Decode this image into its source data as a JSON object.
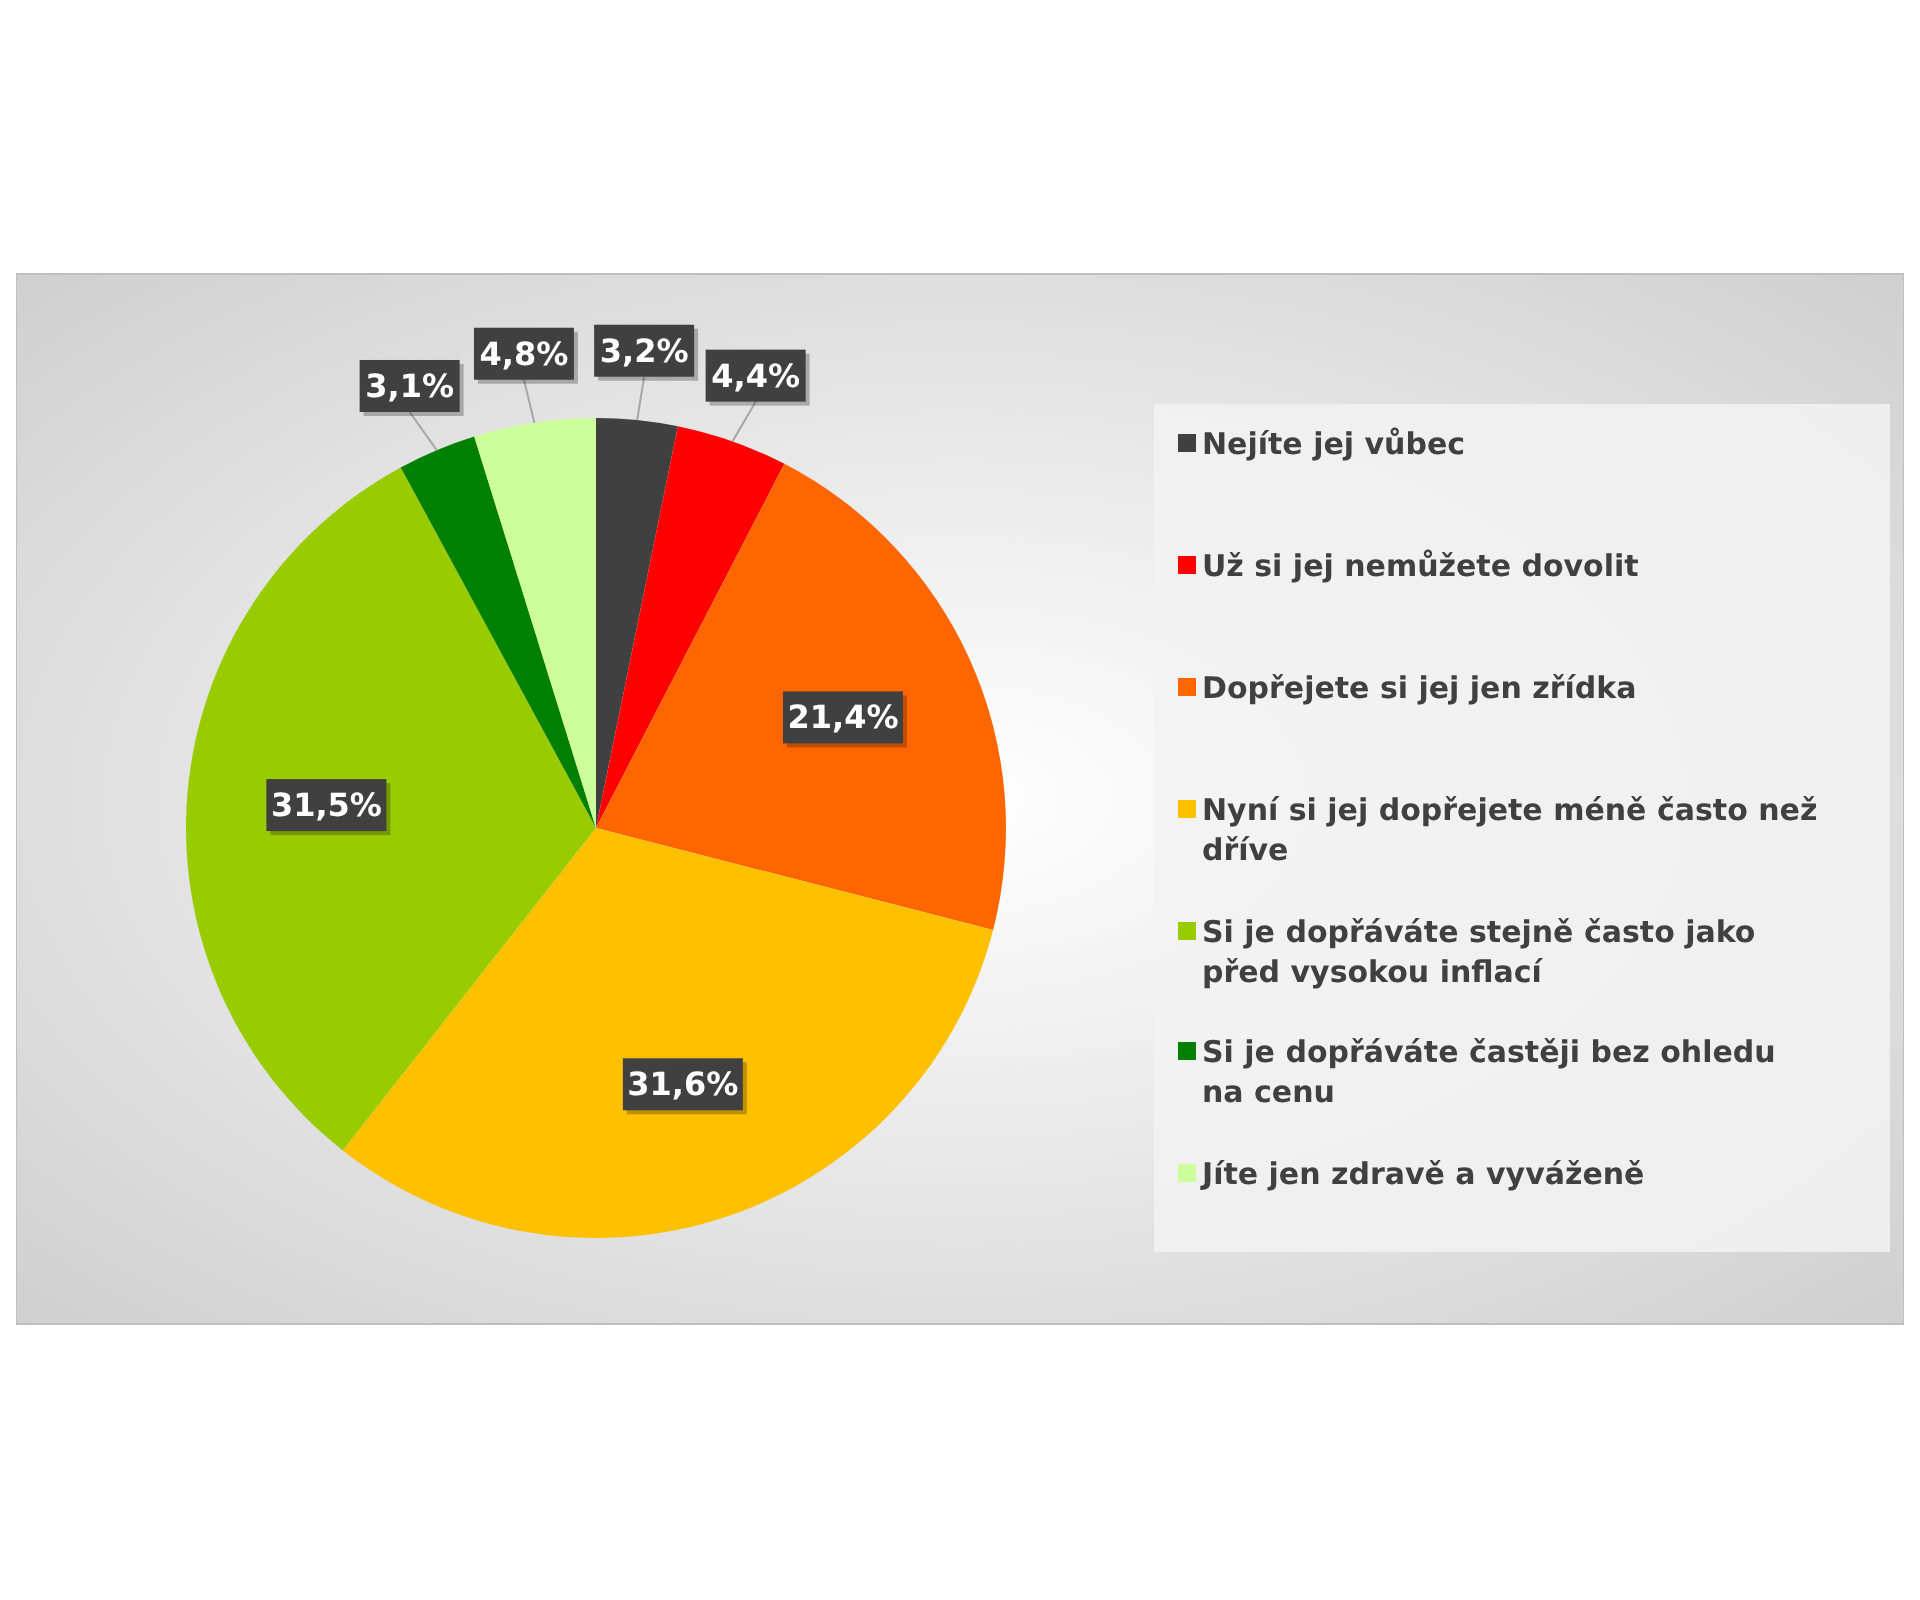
{
  "chart_data": {
    "type": "pie",
    "categories": [
      "Nejíte jej vůbec",
      "Už si jej nemůžete dovolit",
      "Dopřejete si jej jen zřídka",
      "Nyní si jej dopřejete méně často než dříve",
      "Si je dopřáváte stejně často jako před vysokou inflací",
      "Si je dopřáváte častěji bez ohledu na cenu",
      "Jíte jen zdravě a vyváženě"
    ],
    "values": [
      3.2,
      4.4,
      21.4,
      31.6,
      31.5,
      3.1,
      4.8
    ],
    "value_labels": [
      "3,2%",
      "4,4%",
      "21,4%",
      "31,6%",
      "31,5%",
      "3,1%",
      "4,8%"
    ],
    "colors": [
      "#404040",
      "#ff0000",
      "#ff6600",
      "#ffc000",
      "#99cc00",
      "#008000",
      "#ccff99"
    ],
    "legend": "right"
  }
}
